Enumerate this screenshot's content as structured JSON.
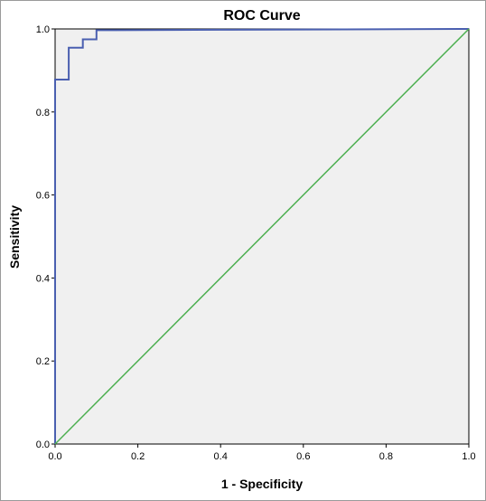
{
  "chart_data": {
    "type": "line",
    "title": "ROC Curve",
    "xlabel": "1 - Specificity",
    "ylabel": "Sensitivity",
    "xlim": [
      0.0,
      1.0
    ],
    "ylim": [
      0.0,
      1.0
    ],
    "x_ticks": [
      "0.0",
      "0.2",
      "0.4",
      "0.6",
      "0.8",
      "1.0"
    ],
    "y_ticks": [
      "0.0",
      "0.2",
      "0.4",
      "0.6",
      "0.8",
      "1.0"
    ],
    "grid": false,
    "legend": "none",
    "series": [
      {
        "color": "#4a5fb0",
        "style": "step",
        "x": [
          0.0,
          0.0,
          0.033,
          0.033,
          0.067,
          0.067,
          0.1,
          0.1,
          0.4,
          1.0
        ],
        "y": [
          0.0,
          0.878,
          0.878,
          0.955,
          0.955,
          0.975,
          0.975,
          0.997,
          0.998,
          1.0
        ]
      },
      {
        "color": "#4caf50",
        "style": "line",
        "x": [
          0.0,
          1.0
        ],
        "y": [
          0.0,
          1.0
        ]
      }
    ],
    "plot_background": "#f0f0f0"
  }
}
